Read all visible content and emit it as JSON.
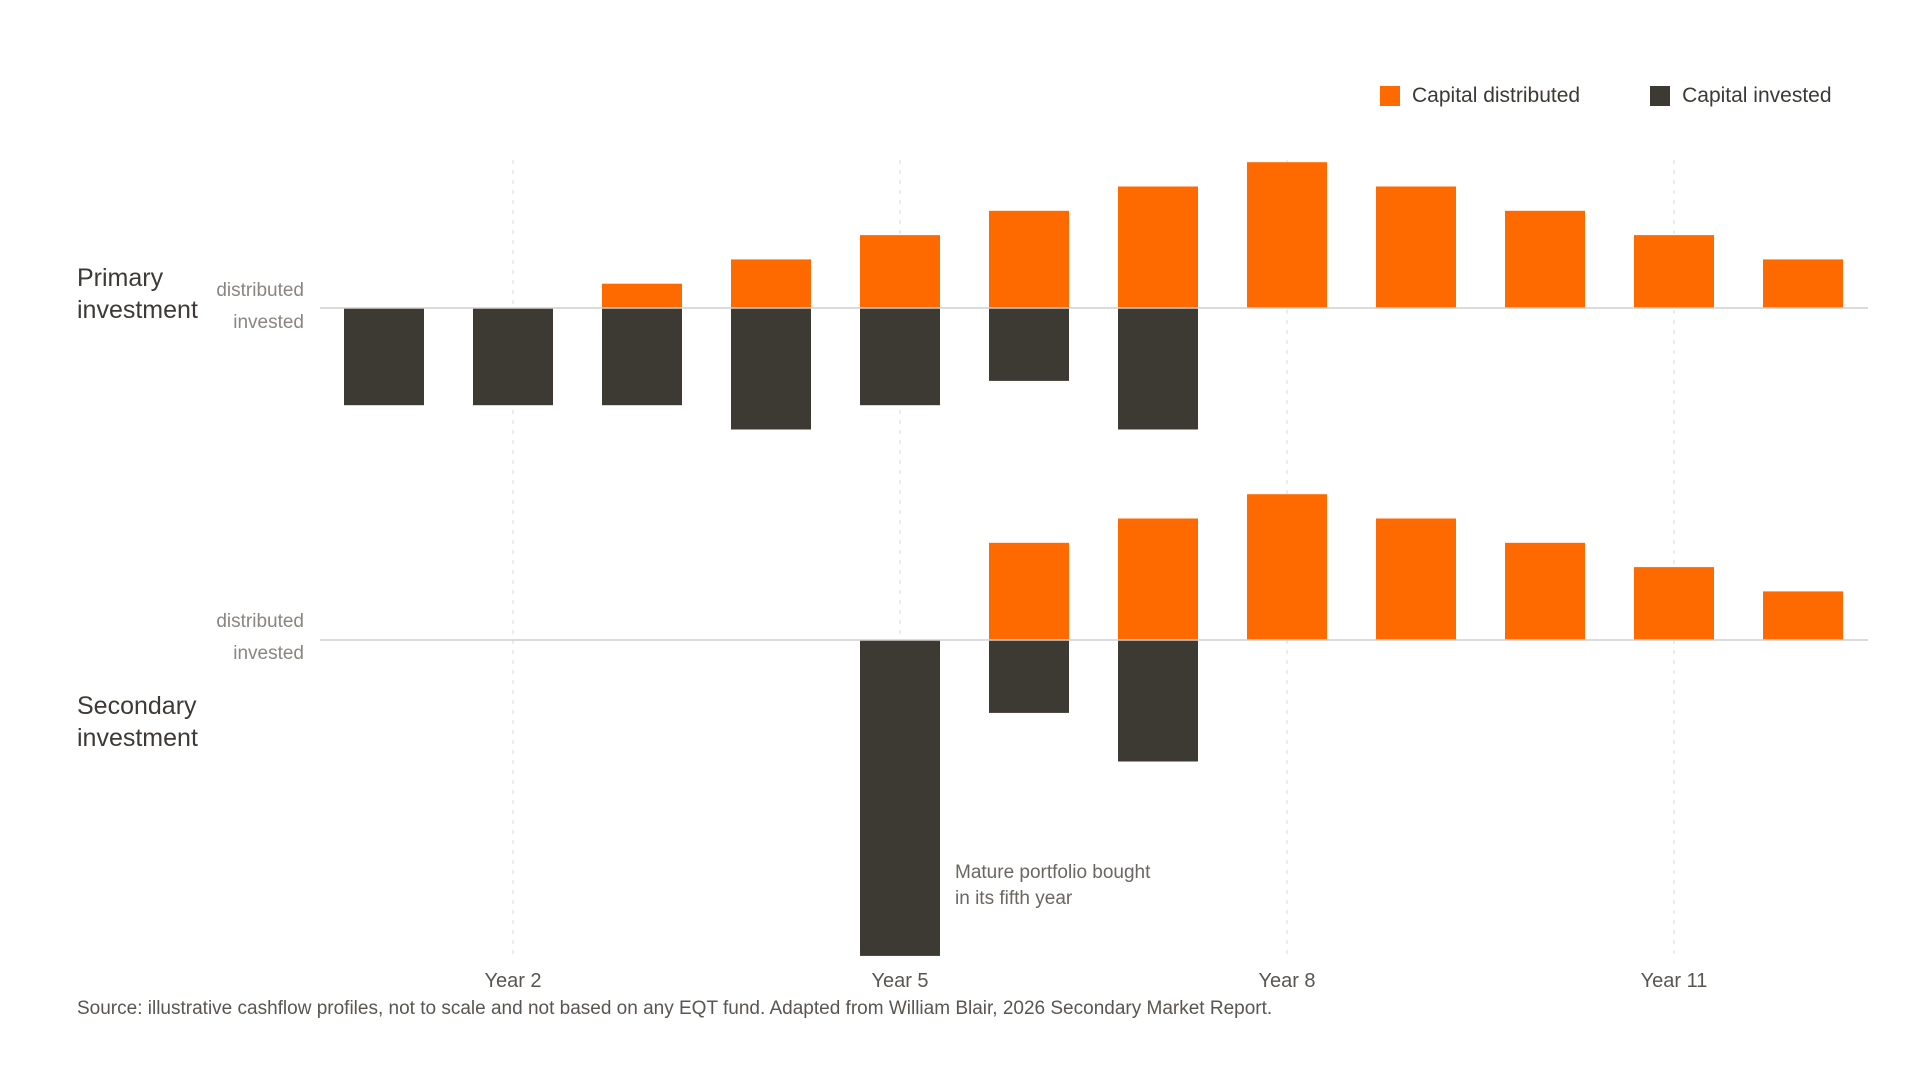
{
  "legend": {
    "distributed_label": "Capital distributed",
    "invested_label": "Capital invested"
  },
  "colors": {
    "distributed": "#ff6a00",
    "invested": "#3d3a33",
    "axis": "#cfcfcf",
    "grid": "#d9d9d9"
  },
  "panels": {
    "primary": {
      "title_line1": "Primary",
      "title_line2": "investment",
      "distributed_label": "distributed",
      "invested_label": "invested"
    },
    "secondary": {
      "title_line1": "Secondary",
      "title_line2": "investment",
      "distributed_label": "distributed",
      "invested_label": "invested"
    }
  },
  "x_ticks": [
    "Year 2",
    "Year 5",
    "Year 8",
    "Year 11"
  ],
  "annotation": {
    "line1": "Mature portfolio bought",
    "line2": "in its fifth year"
  },
  "source": "Source: illustrative cashflow profiles, not to scale and not based on any EQT fund. Adapted from William Blair, 2026 Secondary Market Report.",
  "chart_data": [
    {
      "type": "bar",
      "categories": [
        "1",
        "2",
        "3",
        "4",
        "5",
        "6",
        "7",
        "8",
        "9",
        "10",
        "11",
        "12"
      ],
      "series": [
        {
          "name": "Capital distributed",
          "values": [
            0,
            0,
            1,
            2,
            3,
            4,
            5,
            6,
            5,
            4,
            3,
            2
          ]
        },
        {
          "name": "Capital invested",
          "values": [
            -4,
            -4,
            -4,
            -5,
            -4,
            -3,
            -5,
            0,
            0,
            0,
            0,
            0
          ]
        }
      ],
      "x_tick_labels": [
        "Year 2",
        "Year 5",
        "Year 8",
        "Year 11"
      ],
      "ylim": [
        -6,
        6
      ]
    },
    {
      "type": "bar",
      "categories": [
        "1",
        "2",
        "3",
        "4",
        "5",
        "6",
        "7",
        "8",
        "9",
        "10",
        "11",
        "12"
      ],
      "series": [
        {
          "name": "Capital distributed",
          "values": [
            0,
            0,
            0,
            0,
            0,
            4,
            5,
            6,
            5,
            4,
            3,
            2
          ]
        },
        {
          "name": "Capital invested",
          "values": [
            0,
            0,
            0,
            0,
            -13,
            -3,
            -5,
            0,
            0,
            0,
            0,
            0
          ]
        }
      ],
      "x_tick_labels": [
        "Year 2",
        "Year 5",
        "Year 8",
        "Year 11"
      ],
      "ylim": [
        -13,
        6
      ]
    }
  ]
}
